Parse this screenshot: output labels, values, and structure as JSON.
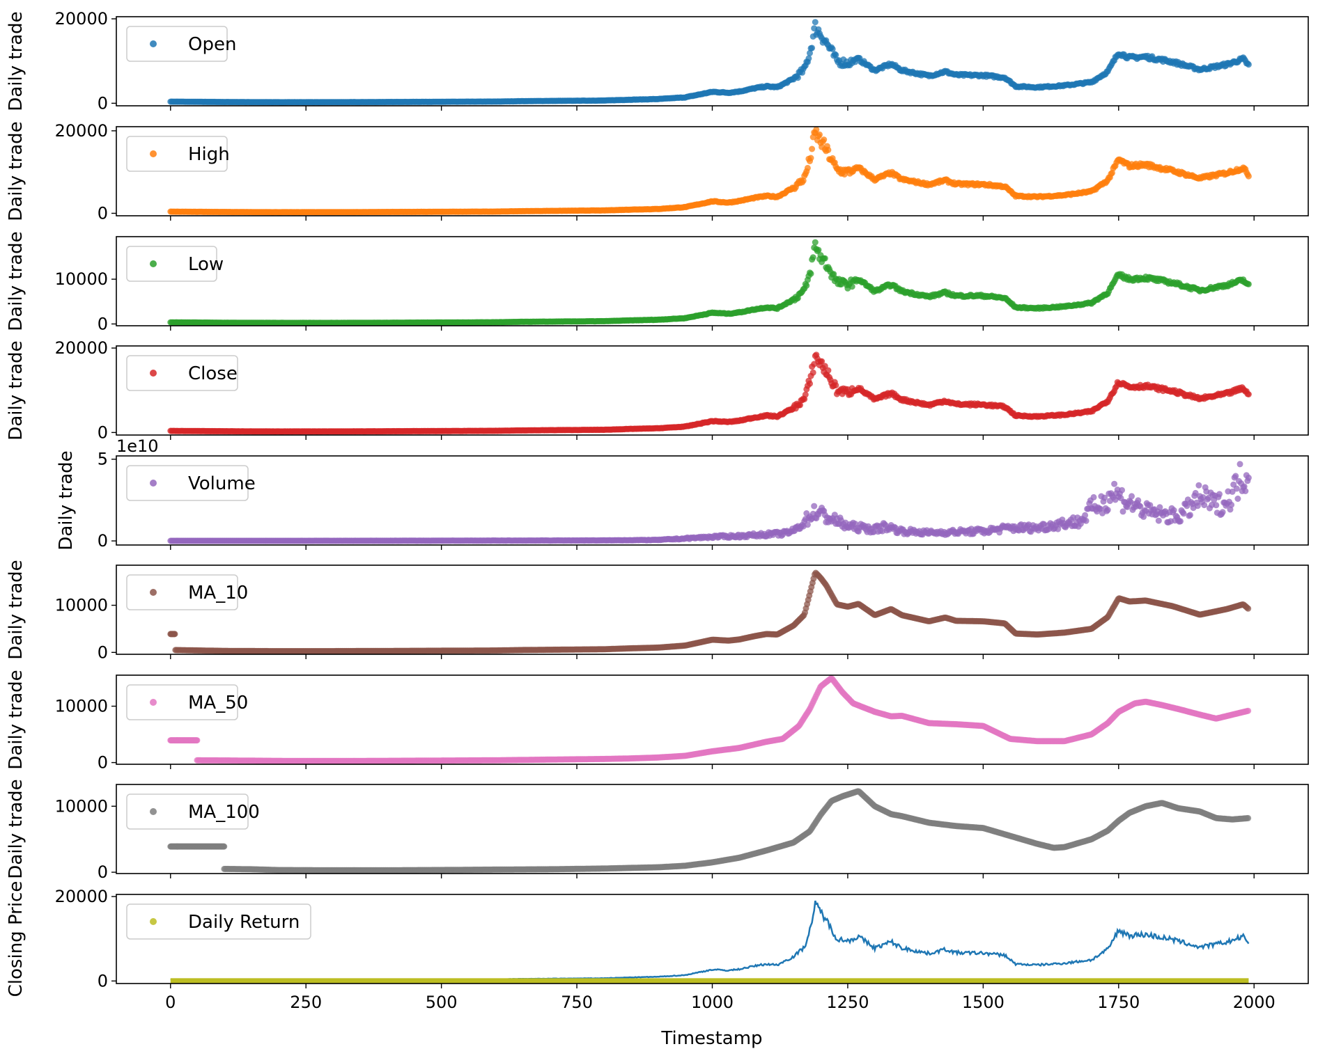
{
  "xlabel": "Timestamp",
  "x_ticks": [
    0,
    250,
    500,
    750,
    1000,
    1250,
    1500,
    1750,
    2000
  ],
  "xlim": [
    -100,
    2100
  ],
  "chart_data": [
    {
      "type": "scatter",
      "legend": "Open",
      "ylabel": "Daily trade",
      "color": "#1f77b4",
      "ylim": [
        -600,
        20500
      ],
      "yticks": [
        {
          "v": 0,
          "t": "0"
        },
        {
          "v": 20000,
          "t": "20000"
        }
      ],
      "offset_text": "",
      "x": [
        0,
        100,
        200,
        300,
        400,
        500,
        600,
        650,
        700,
        800,
        850,
        900,
        950,
        1000,
        1030,
        1050,
        1080,
        1100,
        1120,
        1150,
        1170,
        1180,
        1190,
        1200,
        1210,
        1230,
        1250,
        1270,
        1300,
        1330,
        1350,
        1400,
        1430,
        1450,
        1500,
        1540,
        1560,
        1600,
        1650,
        1700,
        1730,
        1750,
        1770,
        1800,
        1850,
        1900,
        1950,
        1980,
        1990
      ],
      "values": [
        380,
        300,
        250,
        260,
        300,
        350,
        400,
        500,
        550,
        650,
        850,
        1000,
        1400,
        2700,
        2500,
        2800,
        3600,
        4000,
        3800,
        5800,
        8000,
        12000,
        18000,
        16500,
        14500,
        10000,
        9500,
        10500,
        7800,
        9300,
        7800,
        6500,
        7500,
        6700,
        6600,
        6100,
        4000,
        3800,
        4200,
        5000,
        7500,
        12000,
        10800,
        11000,
        9800,
        8000,
        9200,
        10500,
        9000
      ]
    },
    {
      "type": "scatter",
      "legend": "High",
      "ylabel": "Daily trade",
      "color": "#ff7f0e",
      "ylim": [
        -600,
        21000
      ],
      "yticks": [
        {
          "v": 0,
          "t": "0"
        },
        {
          "v": 20000,
          "t": "20000"
        }
      ],
      "offset_text": "",
      "x": [
        0,
        100,
        200,
        300,
        400,
        500,
        600,
        650,
        700,
        800,
        850,
        900,
        950,
        1000,
        1030,
        1050,
        1080,
        1100,
        1120,
        1150,
        1170,
        1180,
        1190,
        1200,
        1210,
        1230,
        1250,
        1270,
        1300,
        1330,
        1350,
        1400,
        1430,
        1450,
        1500,
        1540,
        1560,
        1600,
        1650,
        1700,
        1730,
        1750,
        1770,
        1800,
        1850,
        1900,
        1950,
        1980,
        1990
      ],
      "values": [
        400,
        320,
        270,
        280,
        320,
        370,
        420,
        520,
        580,
        700,
        900,
        1050,
        1500,
        2900,
        2600,
        3000,
        3800,
        4200,
        4000,
        6200,
        8500,
        13000,
        19500,
        17500,
        15500,
        10500,
        10000,
        11000,
        8200,
        9800,
        8200,
        7000,
        8000,
        7100,
        7000,
        6500,
        4200,
        4000,
        4400,
        5300,
        8000,
        13000,
        11500,
        11800,
        10300,
        8500,
        9800,
        11000,
        9300
      ]
    },
    {
      "type": "scatter",
      "legend": "Low",
      "ylabel": "Daily trade",
      "color": "#2ca02c",
      "ylim": [
        -400,
        19500
      ],
      "yticks": [
        {
          "v": 0,
          "t": "0"
        },
        {
          "v": 10000,
          "t": "10000"
        }
      ],
      "offset_text": "",
      "x": [
        0,
        100,
        200,
        300,
        400,
        500,
        600,
        650,
        700,
        800,
        850,
        900,
        950,
        1000,
        1030,
        1050,
        1080,
        1100,
        1120,
        1150,
        1170,
        1180,
        1190,
        1200,
        1210,
        1230,
        1250,
        1270,
        1300,
        1330,
        1350,
        1400,
        1430,
        1450,
        1500,
        1540,
        1560,
        1600,
        1650,
        1700,
        1730,
        1750,
        1770,
        1800,
        1850,
        1900,
        1950,
        1980,
        1990
      ],
      "values": [
        360,
        280,
        240,
        240,
        280,
        330,
        380,
        480,
        520,
        620,
        800,
        950,
        1300,
        2500,
        2300,
        2600,
        3300,
        3700,
        3500,
        5500,
        7500,
        11000,
        17500,
        15000,
        13500,
        9300,
        8800,
        10000,
        7300,
        8800,
        7300,
        6100,
        7000,
        6300,
        6300,
        5800,
        3700,
        3500,
        3900,
        4700,
        7000,
        11000,
        10000,
        10300,
        9200,
        7500,
        8700,
        9800,
        8600
      ]
    },
    {
      "type": "scatter",
      "legend": "Close",
      "ylabel": "Daily trade",
      "color": "#d62728",
      "ylim": [
        -600,
        20500
      ],
      "yticks": [
        {
          "v": 0,
          "t": "0"
        },
        {
          "v": 20000,
          "t": "20000"
        }
      ],
      "offset_text": "",
      "x": [
        0,
        100,
        200,
        300,
        400,
        500,
        600,
        650,
        700,
        800,
        850,
        900,
        950,
        1000,
        1030,
        1050,
        1080,
        1100,
        1120,
        1150,
        1170,
        1180,
        1190,
        1200,
        1210,
        1230,
        1250,
        1270,
        1300,
        1330,
        1350,
        1400,
        1430,
        1450,
        1500,
        1540,
        1560,
        1600,
        1650,
        1700,
        1730,
        1750,
        1770,
        1800,
        1850,
        1900,
        1950,
        1980,
        1990
      ],
      "values": [
        380,
        300,
        250,
        260,
        300,
        350,
        400,
        500,
        550,
        650,
        850,
        1000,
        1400,
        2700,
        2500,
        2800,
        3600,
        4000,
        3800,
        5800,
        8000,
        12000,
        18000,
        16500,
        14500,
        10000,
        9500,
        10500,
        7800,
        9300,
        7800,
        6500,
        7500,
        6700,
        6600,
        6100,
        4000,
        3800,
        4200,
        5000,
        7500,
        12000,
        10800,
        11000,
        9800,
        8000,
        9200,
        10500,
        9000
      ]
    },
    {
      "type": "scatter",
      "legend": "Volume",
      "ylabel": "Daily trade",
      "color": "#9467bd",
      "ylim": [
        -2500000000.0,
        52000000000.0
      ],
      "yticks": [
        {
          "v": 0,
          "t": "0"
        },
        {
          "v": 50000000000.0,
          "t": "5"
        }
      ],
      "offset_text": "1e10",
      "x": [
        0,
        200,
        400,
        600,
        800,
        900,
        950,
        1000,
        1050,
        1100,
        1130,
        1150,
        1170,
        1190,
        1210,
        1250,
        1300,
        1320,
        1350,
        1400,
        1450,
        1500,
        1550,
        1600,
        1650,
        1680,
        1700,
        1720,
        1740,
        1760,
        1780,
        1800,
        1830,
        1860,
        1880,
        1900,
        1930,
        1950,
        1970,
        1990
      ],
      "values": [
        50000000.0,
        60000000.0,
        100000000.0,
        200000000.0,
        300000000.0,
        600000000.0,
        1500000000.0,
        2500000000.0,
        3000000000.0,
        4000000000.0,
        4500000000.0,
        6000000000.0,
        12000000000.0,
        18000000000.0,
        15000000000.0,
        9000000000.0,
        7000000000.0,
        9000000000.0,
        6000000000.0,
        5000000000.0,
        5500000000.0,
        6000000000.0,
        8000000000.0,
        8000000000.0,
        11000000000.0,
        12000000000.0,
        20000000000.0,
        23000000000.0,
        30000000000.0,
        25000000000.0,
        22000000000.0,
        18000000000.0,
        16000000000.0,
        15000000000.0,
        20000000000.0,
        27000000000.0,
        22000000000.0,
        24000000000.0,
        35000000000.0,
        45000000000.0
      ]
    },
    {
      "type": "scatter",
      "legend": "MA_10",
      "ylabel": "Daily trade",
      "color": "#8c564b",
      "ylim": [
        -400,
        18500
      ],
      "yticks": [
        {
          "v": 0,
          "t": "0"
        },
        {
          "v": 10000,
          "t": "10000"
        }
      ],
      "offset_text": "",
      "x": [
        9,
        100,
        200,
        300,
        400,
        500,
        600,
        650,
        700,
        800,
        850,
        900,
        950,
        1000,
        1030,
        1050,
        1080,
        1100,
        1120,
        1150,
        1170,
        1190,
        1200,
        1210,
        1230,
        1250,
        1270,
        1300,
        1330,
        1350,
        1400,
        1430,
        1450,
        1500,
        1540,
        1560,
        1600,
        1650,
        1700,
        1730,
        1750,
        1770,
        1800,
        1850,
        1900,
        1950,
        1980,
        1990
      ],
      "values": [
        500,
        320,
        260,
        270,
        310,
        360,
        410,
        510,
        560,
        670,
        870,
        1020,
        1450,
        2700,
        2500,
        2750,
        3500,
        3900,
        3800,
        5700,
        8000,
        17000,
        15800,
        14300,
        10200,
        9700,
        10300,
        7900,
        9200,
        7900,
        6600,
        7400,
        6700,
        6600,
        6150,
        4000,
        3800,
        4200,
        5000,
        7500,
        11500,
        10800,
        11000,
        9800,
        8000,
        9200,
        10200,
        9200
      ],
      "init_x": [
        0,
        8
      ],
      "init_value": 3900
    },
    {
      "type": "scatter",
      "legend": "MA_50",
      "ylabel": "Daily trade",
      "color": "#e377c2",
      "ylim": [
        -300,
        15500
      ],
      "yticks": [
        {
          "v": 0,
          "t": "0"
        },
        {
          "v": 10000,
          "t": "10000"
        }
      ],
      "offset_text": "",
      "x": [
        49,
        100,
        200,
        300,
        400,
        500,
        600,
        650,
        700,
        800,
        850,
        900,
        950,
        1000,
        1050,
        1100,
        1130,
        1160,
        1180,
        1200,
        1220,
        1240,
        1260,
        1300,
        1330,
        1350,
        1400,
        1450,
        1500,
        1550,
        1600,
        1650,
        1700,
        1730,
        1750,
        1780,
        1800,
        1830,
        1860,
        1900,
        1930,
        1960,
        1990
      ],
      "values": [
        400,
        380,
        300,
        280,
        310,
        360,
        410,
        470,
        530,
        640,
        740,
        900,
        1200,
        2000,
        2600,
        3700,
        4200,
        6500,
        9500,
        13500,
        15000,
        12500,
        10500,
        9000,
        8200,
        8300,
        7000,
        6800,
        6500,
        4200,
        3800,
        3800,
        5000,
        7000,
        9000,
        10500,
        10800,
        10200,
        9500,
        8500,
        7800,
        8500,
        9200
      ],
      "init_x": [
        0,
        49
      ],
      "init_value": 3950
    },
    {
      "type": "scatter",
      "legend": "MA_100",
      "ylabel": "Daily trade",
      "color": "#7f7f7f",
      "ylim": [
        -200,
        13300
      ],
      "yticks": [
        {
          "v": 0,
          "t": "0"
        },
        {
          "v": 10000,
          "t": "10000"
        }
      ],
      "offset_text": "",
      "x": [
        99,
        150,
        200,
        300,
        400,
        500,
        600,
        700,
        800,
        850,
        900,
        950,
        1000,
        1050,
        1100,
        1150,
        1180,
        1200,
        1220,
        1240,
        1270,
        1300,
        1330,
        1350,
        1400,
        1450,
        1500,
        1550,
        1600,
        1630,
        1650,
        1700,
        1730,
        1750,
        1770,
        1800,
        1830,
        1860,
        1900,
        1930,
        1960,
        1990
      ],
      "values": [
        500,
        450,
        330,
        300,
        300,
        340,
        400,
        450,
        560,
        660,
        750,
        980,
        1500,
        2200,
        3300,
        4500,
        6200,
        8700,
        10800,
        11500,
        12300,
        10000,
        8800,
        8500,
        7500,
        7000,
        6700,
        5500,
        4300,
        3700,
        3800,
        5000,
        6300,
        7800,
        9000,
        10000,
        10500,
        9700,
        9200,
        8200,
        8000,
        8200
      ],
      "init_x": [
        0,
        99
      ],
      "init_value": 3900
    },
    {
      "type": "line+scatter",
      "legend": "Daily Return",
      "ylabel": "Closing Price",
      "color": "#bcbd22",
      "line_color": "#1f77b4",
      "ylim": [
        -600,
        20500
      ],
      "yticks": [
        {
          "v": 0,
          "t": "0"
        },
        {
          "v": 20000,
          "t": "20000"
        }
      ],
      "offset_text": "",
      "x": [
        0,
        100,
        200,
        300,
        400,
        500,
        600,
        650,
        700,
        800,
        850,
        900,
        950,
        1000,
        1030,
        1050,
        1080,
        1100,
        1120,
        1150,
        1170,
        1180,
        1190,
        1200,
        1210,
        1230,
        1250,
        1270,
        1300,
        1330,
        1350,
        1400,
        1430,
        1450,
        1500,
        1540,
        1560,
        1600,
        1650,
        1700,
        1730,
        1750,
        1770,
        1800,
        1850,
        1900,
        1950,
        1980,
        1990
      ],
      "values": [
        380,
        300,
        250,
        260,
        300,
        350,
        400,
        500,
        550,
        650,
        850,
        1000,
        1400,
        2700,
        2500,
        2800,
        3600,
        4000,
        3800,
        5800,
        8000,
        12000,
        18000,
        16500,
        14500,
        10000,
        9500,
        10500,
        7800,
        9300,
        7800,
        6500,
        7500,
        6700,
        6600,
        6100,
        4000,
        3800,
        4200,
        5000,
        7500,
        12000,
        10800,
        11000,
        9800,
        8000,
        9200,
        10500,
        9000
      ],
      "scatter_value": 0
    }
  ]
}
